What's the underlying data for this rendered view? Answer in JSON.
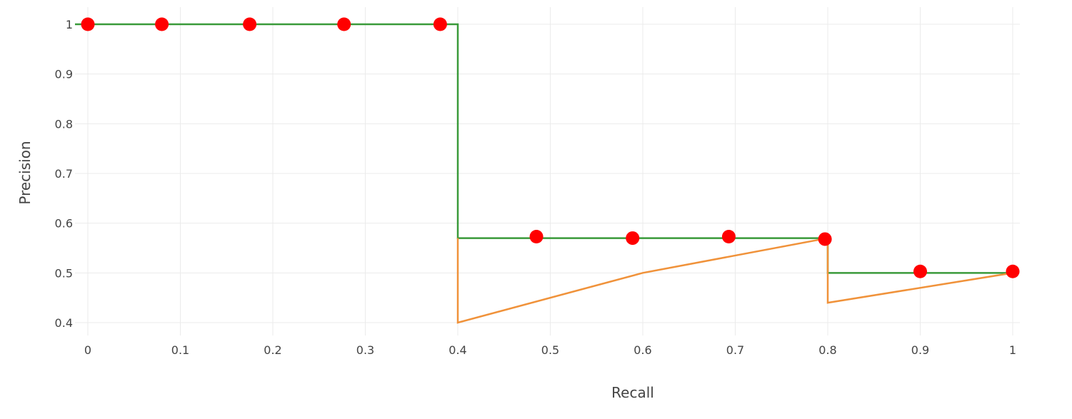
{
  "chart_data": {
    "type": "line",
    "xlabel": "Recall",
    "ylabel": "Precision",
    "xlim": [
      0,
      1
    ],
    "ylim": [
      0.4,
      1
    ],
    "x_ticks": [
      "0",
      "0.1",
      "0.2",
      "0.3",
      "0.4",
      "0.5",
      "0.6",
      "0.7",
      "0.8",
      "0.9",
      "1"
    ],
    "y_ticks": [
      "0.4",
      "0.5",
      "0.6",
      "0.7",
      "0.8",
      "0.9",
      "1"
    ],
    "grid": true,
    "legend": "none",
    "series": [
      {
        "kind": "line",
        "color": "#3a9a3a",
        "points": [
          [
            0,
            1
          ],
          [
            0.4,
            1
          ],
          [
            0.4,
            0.57
          ],
          [
            0.8,
            0.57
          ],
          [
            0.8,
            0.5
          ],
          [
            1,
            0.5
          ]
        ]
      },
      {
        "kind": "line",
        "color": "#f0923a",
        "points": [
          [
            0.4,
            0.57
          ],
          [
            0.4,
            0.4
          ],
          [
            0.6,
            0.5
          ],
          [
            0.8,
            0.57
          ],
          [
            0.8,
            0.44
          ],
          [
            1,
            0.5
          ]
        ]
      },
      {
        "kind": "scatter",
        "color": "#ff0000",
        "points": [
          [
            0,
            1
          ],
          [
            0.08,
            1
          ],
          [
            0.175,
            1
          ],
          [
            0.277,
            1
          ],
          [
            0.381,
            1
          ],
          [
            0.485,
            0.573
          ],
          [
            0.589,
            0.57
          ],
          [
            0.693,
            0.573
          ],
          [
            0.797,
            0.568
          ],
          [
            0.9,
            0.503
          ],
          [
            1,
            0.503
          ]
        ]
      }
    ]
  }
}
